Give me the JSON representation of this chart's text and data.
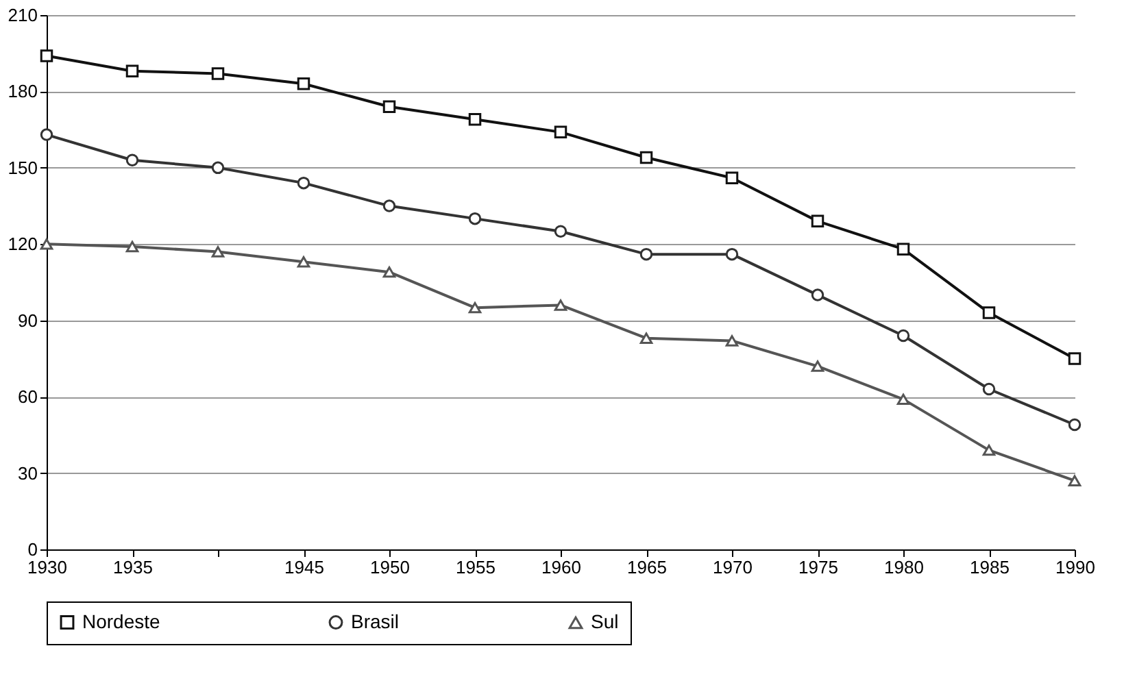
{
  "chart_data": {
    "type": "line",
    "categories": [
      "1930",
      "1935",
      null,
      "1945",
      "1950",
      "1955",
      "1960",
      "1965",
      "1970",
      "1975",
      "1980",
      "1985",
      "1990"
    ],
    "series": [
      {
        "name": "Nordeste",
        "color": "#111111",
        "marker": "square",
        "values": [
          194,
          188,
          187,
          183,
          174,
          169,
          164,
          154,
          146,
          129,
          118,
          93,
          75
        ]
      },
      {
        "name": "Brasil",
        "color": "#333333",
        "marker": "circle",
        "values": [
          163,
          153,
          150,
          144,
          135,
          130,
          125,
          116,
          116,
          100,
          84,
          63,
          49
        ]
      },
      {
        "name": "Sul",
        "color": "#555555",
        "marker": "triangle",
        "values": [
          120,
          119,
          117,
          113,
          109,
          95,
          96,
          83,
          82,
          72,
          59,
          39,
          27
        ]
      }
    ],
    "ylim": [
      0,
      210
    ],
    "yticks": [
      0,
      30,
      60,
      90,
      120,
      150,
      180,
      210
    ],
    "grid": "y",
    "legend": "bottom",
    "line_style": "solid"
  }
}
